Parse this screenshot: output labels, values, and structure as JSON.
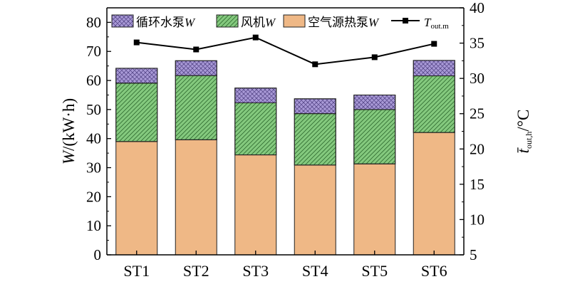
{
  "chart_data": {
    "type": "bar",
    "stacked": true,
    "categories": [
      "ST1",
      "ST2",
      "ST3",
      "ST4",
      "ST5",
      "ST6"
    ],
    "series": [
      {
        "name": "空气源热泵W",
        "axis": "left",
        "values": [
          39.0,
          39.6,
          34.4,
          30.9,
          31.3,
          42.1
        ],
        "color": "#EFB886"
      },
      {
        "name": "风机W",
        "axis": "left",
        "values": [
          20.1,
          22.1,
          17.9,
          17.7,
          18.7,
          19.5
        ],
        "color": "#84C97E"
      },
      {
        "name": "循环水泵W",
        "axis": "left",
        "values": [
          5.1,
          5.1,
          5.1,
          5.1,
          5.0,
          5.3
        ],
        "color": "#A899D6"
      },
      {
        "name": "T_out.m",
        "axis": "right",
        "type": "line",
        "values": [
          35.1,
          34.1,
          35.8,
          32.0,
          33.0,
          34.9
        ],
        "color": "#000000"
      }
    ],
    "legend": {
      "position": "top",
      "items": [
        {
          "label_main": "循环水泵",
          "label_var": "W",
          "label_sub": ""
        },
        {
          "label_main": "风机",
          "label_var": "W",
          "label_sub": ""
        },
        {
          "label_main": "空气源热泵",
          "label_var": "W",
          "label_sub": ""
        },
        {
          "label_main": "",
          "label_var": "T",
          "label_sub": "out.m"
        }
      ]
    },
    "y_left": {
      "label_var": "W",
      "label_unit": "/(kW·h)",
      "ylim": [
        0,
        85
      ],
      "ticks": [
        0,
        10,
        20,
        30,
        40,
        50,
        60,
        70,
        80
      ]
    },
    "y_right": {
      "label_var": "t̄",
      "label_sub": "out,h",
      "label_unit": "/°C",
      "ylim": [
        5,
        40
      ],
      "ticks": [
        5,
        10,
        15,
        20,
        25,
        30,
        35,
        40
      ]
    },
    "grid": false
  }
}
